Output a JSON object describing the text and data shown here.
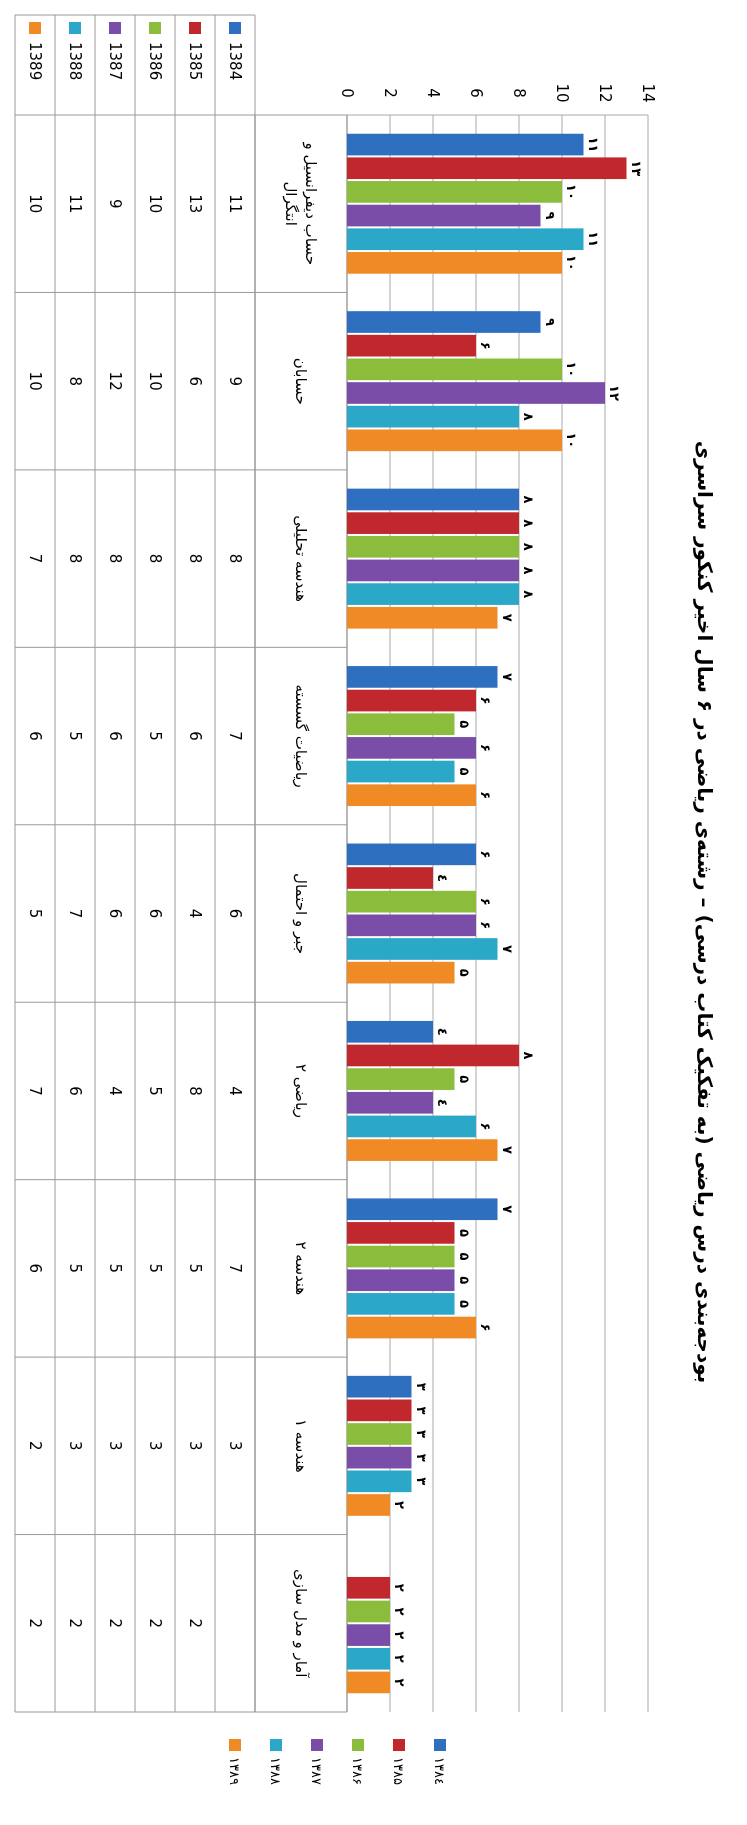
{
  "chart_data": {
    "type": "bar",
    "orientation": "horizontal",
    "title": "بودجه‌بندی درس ریاضی (به تفکیک کتاب درسی) – رشته‌ی ریاضی در ۶ سال اخیر کنکور سراسری",
    "categories": [
      "حساب دیفرانسیل و انتگرال",
      "حسابان",
      "هندسه تحلیلی",
      "ریاضیات گسسته",
      "جبر و احتمال",
      "ریاضی ۲",
      "هندسه ۲",
      "هندسه ۱",
      "آمار و مدل سازی"
    ],
    "series": [
      {
        "name": "۱۳۸٤",
        "color": "#2e6fc0",
        "values": [
          11,
          9,
          8,
          7,
          6,
          4,
          7,
          3,
          null
        ]
      },
      {
        "name": "۱۳۸۵",
        "color": "#c0282d",
        "values": [
          13,
          6,
          8,
          6,
          4,
          8,
          5,
          3,
          2
        ]
      },
      {
        "name": "۱۳۸۶",
        "color": "#8cbc3c",
        "values": [
          10,
          10,
          8,
          5,
          6,
          5,
          5,
          3,
          2
        ]
      },
      {
        "name": "۱۳۸۷",
        "color": "#7a4ea8",
        "values": [
          9,
          12,
          8,
          6,
          6,
          4,
          5,
          3,
          2
        ]
      },
      {
        "name": "۱۳۸۸",
        "color": "#2ba8c8",
        "values": [
          11,
          8,
          8,
          5,
          7,
          6,
          5,
          3,
          2
        ]
      },
      {
        "name": "۱۳۸۹",
        "color": "#f08a24",
        "values": [
          10,
          10,
          7,
          6,
          5,
          7,
          6,
          2,
          2
        ]
      }
    ],
    "annotations": [
      "1384",
      "1385",
      "1386",
      "1387",
      "1388",
      "1389",
      "۱۱",
      "۱۳",
      "۱۰",
      "۹",
      "۱۱",
      "۱۰",
      "۹",
      "۶",
      "۱۰",
      "۱۲",
      "۸",
      "۱۰",
      "۸",
      "۸",
      "۸",
      "۸",
      "۸",
      "۷",
      "۷",
      "۶",
      "۵",
      "۶",
      "۵",
      "۶",
      "۶",
      "٤",
      "۶",
      "۶",
      "۷",
      "۵",
      "٤",
      "۸",
      "۵",
      "٤",
      "۶",
      "۷",
      "۷",
      "۵",
      "۵",
      "۵",
      "۵",
      "۶",
      "۳",
      "۳",
      "۳",
      "۳",
      "۳",
      "۲",
      "۲",
      "۲",
      "۲",
      "۲",
      "۲"
    ],
    "data_labels": true,
    "xlim": [
      0,
      14
    ],
    "xticks": [
      0,
      2,
      4,
      6,
      8,
      10,
      12,
      14
    ],
    "grid": true,
    "legend": "bottom"
  }
}
